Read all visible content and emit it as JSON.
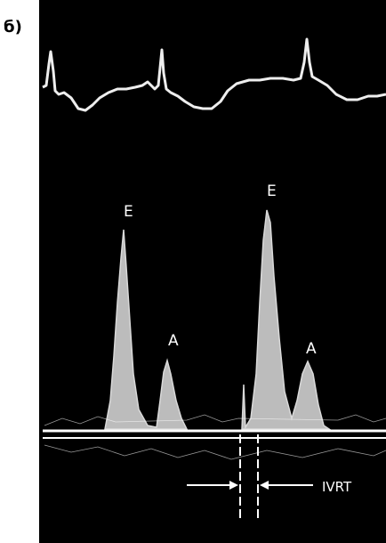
{
  "panel_label": "б)",
  "peak_labels": [
    "E",
    "A",
    "E",
    "A"
  ],
  "interval_label": "IVRT"
}
